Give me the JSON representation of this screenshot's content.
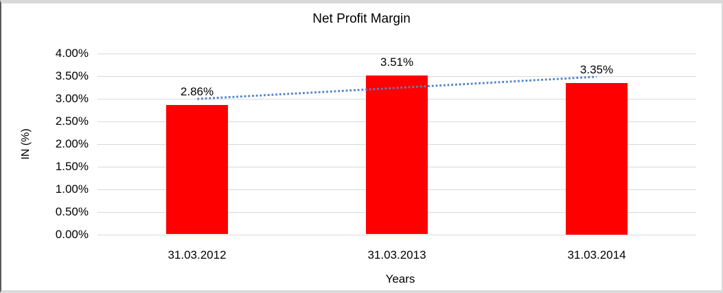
{
  "chart_data": {
    "type": "bar",
    "title": "Net Profit Margin",
    "xlabel": "Years",
    "ylabel": "IN (%)",
    "categories": [
      "31.03.2012",
      "31.03.2013",
      "31.03.2014"
    ],
    "values": [
      2.86,
      3.51,
      3.35
    ],
    "data_labels": [
      "2.86%",
      "3.51%",
      "3.35%"
    ],
    "ylim": [
      0,
      4.0
    ],
    "ytick_step": 0.5,
    "ytick_labels": [
      "0.00%",
      "0.50%",
      "1.00%",
      "1.50%",
      "2.00%",
      "2.50%",
      "3.00%",
      "3.50%",
      "4.00%"
    ],
    "grid": true,
    "legend": "none",
    "bar_color": "#ff0000",
    "trendline": {
      "type": "linear",
      "style": "dotted",
      "color": "#4f86c8"
    },
    "gridline_color": "#d9d9d9",
    "text_color": "#000000",
    "frame_border_light": "#d9d9d9",
    "frame_border_dark": "#595959"
  }
}
